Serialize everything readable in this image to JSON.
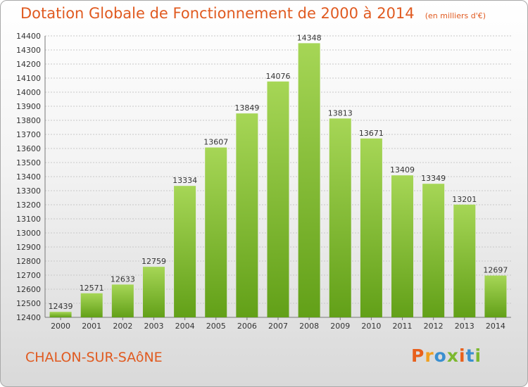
{
  "header": {
    "title": "Dotation Globale de Fonctionnement de 2000 à 2014",
    "unit": "(en milliers d'€)"
  },
  "footer": {
    "city": "CHALON-SUR-SAôNE",
    "logo": "Proxiti",
    "logo_colors": [
      "#e8601c",
      "#f0a020",
      "#3a8fd0",
      "#7cb82f",
      "#e8601c",
      "#3a8fd0",
      "#7cb82f"
    ]
  },
  "colors": {
    "title": "#e05a20",
    "bar_light": "#a6d656",
    "bar_dark": "#62a018",
    "grid": "#c8c8c8"
  },
  "chart_data": {
    "type": "bar",
    "title": "Dotation Globale de Fonctionnement de 2000 à 2014",
    "subtitle": "(en milliers d'€)",
    "categories": [
      "2000",
      "2001",
      "2002",
      "2003",
      "2004",
      "2005",
      "2006",
      "2007",
      "2008",
      "2009",
      "2010",
      "2011",
      "2012",
      "2013",
      "2014"
    ],
    "values": [
      12439,
      12571,
      12633,
      12759,
      13334,
      13607,
      13849,
      14076,
      14348,
      13813,
      13671,
      13409,
      13349,
      13201,
      12697
    ],
    "ylim": [
      12400,
      14400
    ],
    "ytick_step": 100,
    "grid": true,
    "xlabel": "",
    "ylabel": ""
  }
}
